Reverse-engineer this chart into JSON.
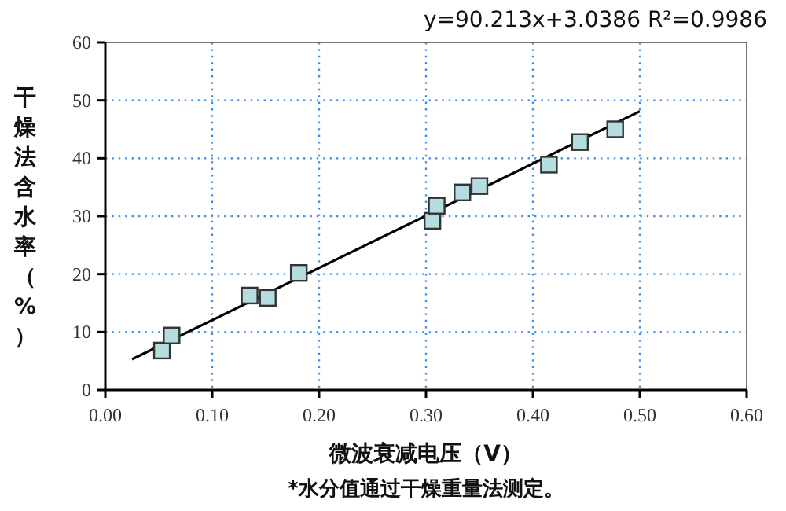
{
  "chart_data": {
    "type": "scatter",
    "xlabel": "微波衰减电压（V）",
    "ylabel": "干燥法含水率（%）",
    "annotations": [
      "y=90.213x+3.0386  R²=0.9986",
      "*水分值通过干燥重量法测定。"
    ],
    "xlim": [
      0,
      0.6
    ],
    "xticks": [
      {
        "value": 0,
        "label": "0.00"
      },
      {
        "value": 0.1,
        "label": "0.10"
      },
      {
        "value": 0.2,
        "label": "0.20"
      },
      {
        "value": 0.3,
        "label": "0.30"
      },
      {
        "value": 0.4,
        "label": "0.40"
      },
      {
        "value": 0.5,
        "label": "0.50"
      },
      {
        "value": 0.6,
        "label": "0.60"
      }
    ],
    "ylim": [
      0,
      60
    ],
    "yticks": [
      0,
      10,
      20,
      30,
      40,
      50,
      60
    ],
    "grid": true,
    "series": [
      {
        "marker": "square",
        "color": "#b4dde0",
        "x": [
          0.053,
          0.062,
          0.135,
          0.152,
          0.181,
          0.306,
          0.31,
          0.334,
          0.35,
          0.415,
          0.444,
          0.477
        ],
        "values": [
          6.8,
          9.4,
          16.3,
          15.9,
          20.2,
          29.2,
          31.8,
          34.1,
          35.2,
          38.9,
          42.8,
          45.0
        ]
      },
      {
        "type": "line",
        "color": "#000000",
        "x": [
          0.025,
          0.5
        ],
        "values": [
          5.3,
          48.1
        ]
      }
    ]
  }
}
